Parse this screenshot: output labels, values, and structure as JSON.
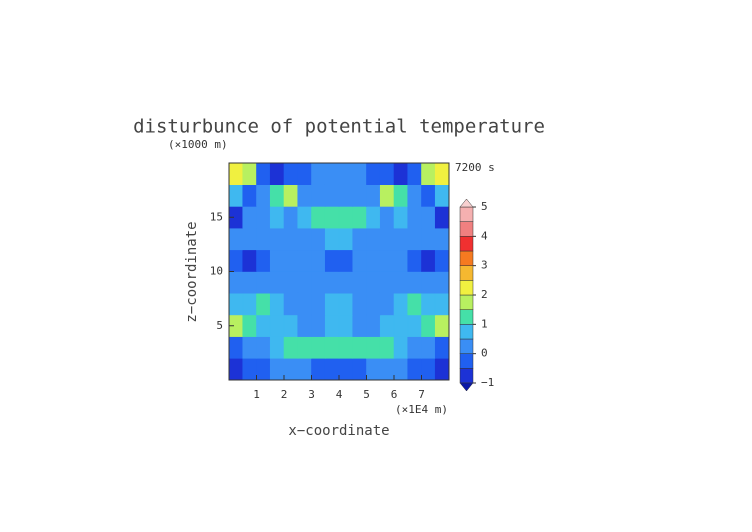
{
  "chart_data": {
    "type": "contour",
    "title": "disturbunce of potential temperature",
    "y_unit": "(×1000 m)",
    "time_label": "7200 s",
    "x_label": "x−coordinate",
    "y_label": "z−coordinate",
    "x_unit": "(×1E4 m)",
    "xlim": [
      0,
      8
    ],
    "ylim": [
      0,
      20
    ],
    "xticks": [
      1,
      2,
      3,
      4,
      5,
      6,
      7
    ],
    "yticks": [
      5,
      10,
      15
    ],
    "x": [
      0.25,
      0.75,
      1.25,
      1.75,
      2.25,
      2.75,
      3.25,
      3.75,
      4.25,
      4.75,
      5.25,
      5.75,
      6.25,
      6.75,
      7.25,
      7.75
    ],
    "y": [
      1,
      3,
      5,
      7,
      9,
      11,
      13,
      15,
      17,
      19
    ],
    "z": [
      [
        -0.6,
        -0.5,
        -0.3,
        0.2,
        0.2,
        0.1,
        -0.2,
        -0.4,
        -0.4,
        -0.2,
        0.1,
        0.2,
        0.2,
        -0.3,
        -0.5,
        -0.6
      ],
      [
        -0.3,
        0.1,
        0.3,
        0.6,
        1.1,
        1.2,
        1.1,
        1.0,
        1.0,
        1.1,
        1.2,
        1.1,
        0.6,
        0.3,
        0.1,
        -0.3
      ],
      [
        1.8,
        1.4,
        0.9,
        0.6,
        0.5,
        0.4,
        0.4,
        0.5,
        0.5,
        0.4,
        0.4,
        0.5,
        0.6,
        0.9,
        1.4,
        1.8
      ],
      [
        0.6,
        0.9,
        1.1,
        0.8,
        0.4,
        0.3,
        0.3,
        0.6,
        0.6,
        0.3,
        0.3,
        0.4,
        0.8,
        1.1,
        0.9,
        0.6
      ],
      [
        0.2,
        0.1,
        0.4,
        0.3,
        0.2,
        0.1,
        0.2,
        0.3,
        0.3,
        0.2,
        0.1,
        0.2,
        0.3,
        0.4,
        0.1,
        0.2
      ],
      [
        -0.2,
        -0.6,
        -0.2,
        0.3,
        0.2,
        0.2,
        0.1,
        -0.4,
        -0.4,
        0.1,
        0.2,
        0.2,
        0.3,
        -0.2,
        -0.6,
        -0.2
      ],
      [
        0.1,
        0.3,
        0.4,
        0.3,
        0.2,
        0.3,
        0.4,
        0.6,
        0.6,
        0.4,
        0.3,
        0.2,
        0.3,
        0.4,
        0.3,
        0.1
      ],
      [
        -0.6,
        0.2,
        0.4,
        0.6,
        0.3,
        0.5,
        1.1,
        1.2,
        1.2,
        1.1,
        0.5,
        0.3,
        0.6,
        0.4,
        0.2,
        -0.6
      ],
      [
        0.6,
        -0.5,
        0.4,
        1.2,
        1.7,
        0.4,
        0.2,
        0.3,
        0.3,
        0.2,
        0.4,
        1.7,
        1.2,
        0.4,
        -0.5,
        0.6
      ],
      [
        2.2,
        1.5,
        -0.2,
        -0.6,
        -0.5,
        -0.2,
        0.2,
        0.3,
        0.3,
        0.2,
        -0.2,
        -0.5,
        -0.6,
        -0.2,
        1.5,
        2.2
      ]
    ],
    "levels": [
      -1,
      -0.5,
      0,
      0.5,
      1,
      1.5,
      2,
      2.5,
      3,
      3.5,
      4,
      4.5,
      5
    ],
    "colors": [
      "#1c32d6",
      "#2060f0",
      "#3a8ef5",
      "#3fb8f0",
      "#45e0a8",
      "#b8f060",
      "#f0f040",
      "#f5b830",
      "#f57a20",
      "#f03030",
      "#f08080",
      "#f5b0b0"
    ],
    "under_color": "#0a18a8",
    "over_color": "#f8d0d0",
    "cbar_ticks": [
      {
        "value": -1,
        "label": "−1"
      },
      0,
      1,
      2,
      3,
      4,
      5
    ]
  }
}
